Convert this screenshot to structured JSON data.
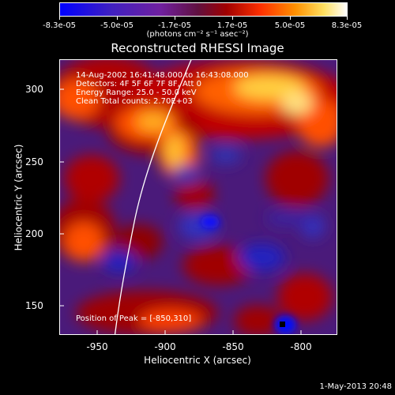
{
  "colorbar": {
    "tick_labels": [
      "-8.3e-05",
      "-5.0e-05",
      "-1.7e-05",
      "1.7e-05",
      "5.0e-05",
      "8.3e-05"
    ],
    "units": "(photons cm⁻² s⁻¹ asec⁻²)"
  },
  "title": "Reconstructed RHESSI Image",
  "annotations": {
    "line1": "14-Aug-2002 16:41:48.000 to 16:43:08.000",
    "line2": "Detectors: 4F 5F 6F 7F 8F, Att 0",
    "line3": "Energy Range: 25.0 - 50.0 keV",
    "line4": "Clean     Total counts: 2.70E+03",
    "peak": "Position of Peak = [-850,310]"
  },
  "x_axis": {
    "label": "Heliocentric X (arcsec)",
    "ticks": [
      "-950",
      "-900",
      "-850",
      "-800"
    ]
  },
  "y_axis": {
    "label": "Heliocentric Y (arcsec)",
    "ticks": [
      "300",
      "250",
      "200",
      "150"
    ]
  },
  "datestamp": "1-May-2013 20:48",
  "colors": {
    "background": "#000000",
    "limb_line": "#ffffff"
  }
}
